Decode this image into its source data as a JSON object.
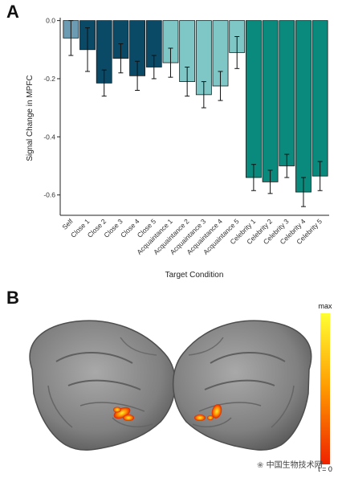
{
  "panels": {
    "a_label": "A",
    "b_label": "B"
  },
  "chart_data": {
    "type": "bar",
    "title": "",
    "xlabel": "Target Condition",
    "ylabel": "Signal Change in MPFC",
    "ylim": [
      -0.67,
      0.01
    ],
    "yticks": [
      "0.0",
      "-0.2",
      "-0.4",
      "-0.6"
    ],
    "ytick_values": [
      0.0,
      -0.2,
      -0.4,
      -0.6
    ],
    "grid": false,
    "legend": "none",
    "categories": [
      "Self",
      "Close 1",
      "Close 2",
      "Close 3",
      "Close 4",
      "Close 5",
      "Acquaintance 1",
      "Acquaintance 2",
      "Acquaintance 3",
      "Acquaintance 4",
      "Acquaintance 5",
      "Celebrity 1",
      "Celebrity 2",
      "Celebrity 3",
      "Celebrity 4",
      "Celebrity 5"
    ],
    "values": [
      -0.06,
      -0.1,
      -0.215,
      -0.13,
      -0.19,
      -0.16,
      -0.145,
      -0.21,
      -0.255,
      -0.225,
      -0.11,
      -0.54,
      -0.555,
      -0.5,
      -0.59,
      -0.535
    ],
    "errors": [
      0.06,
      0.075,
      0.045,
      0.05,
      0.05,
      0.04,
      0.05,
      0.05,
      0.045,
      0.05,
      0.055,
      0.045,
      0.04,
      0.04,
      0.05,
      0.05
    ],
    "bar_colors": [
      "#6b9cb3",
      "#0b4a66",
      "#0b4a66",
      "#0b4a66",
      "#0b4a66",
      "#0b4a66",
      "#7fc6c6",
      "#7fc6c6",
      "#7fc6c6",
      "#7fc6c6",
      "#7fc6c6",
      "#0a8a7c",
      "#0a8a7c",
      "#0a8a7c",
      "#0a8a7c",
      "#0a8a7c"
    ]
  },
  "brain_map": {
    "colorbar_max": "max",
    "colorbar_min": "t = 0",
    "colorbar_colors": [
      "#ffff33",
      "#ff9900",
      "#ee2200"
    ]
  },
  "watermark": {
    "text": "中国生物技术网"
  }
}
